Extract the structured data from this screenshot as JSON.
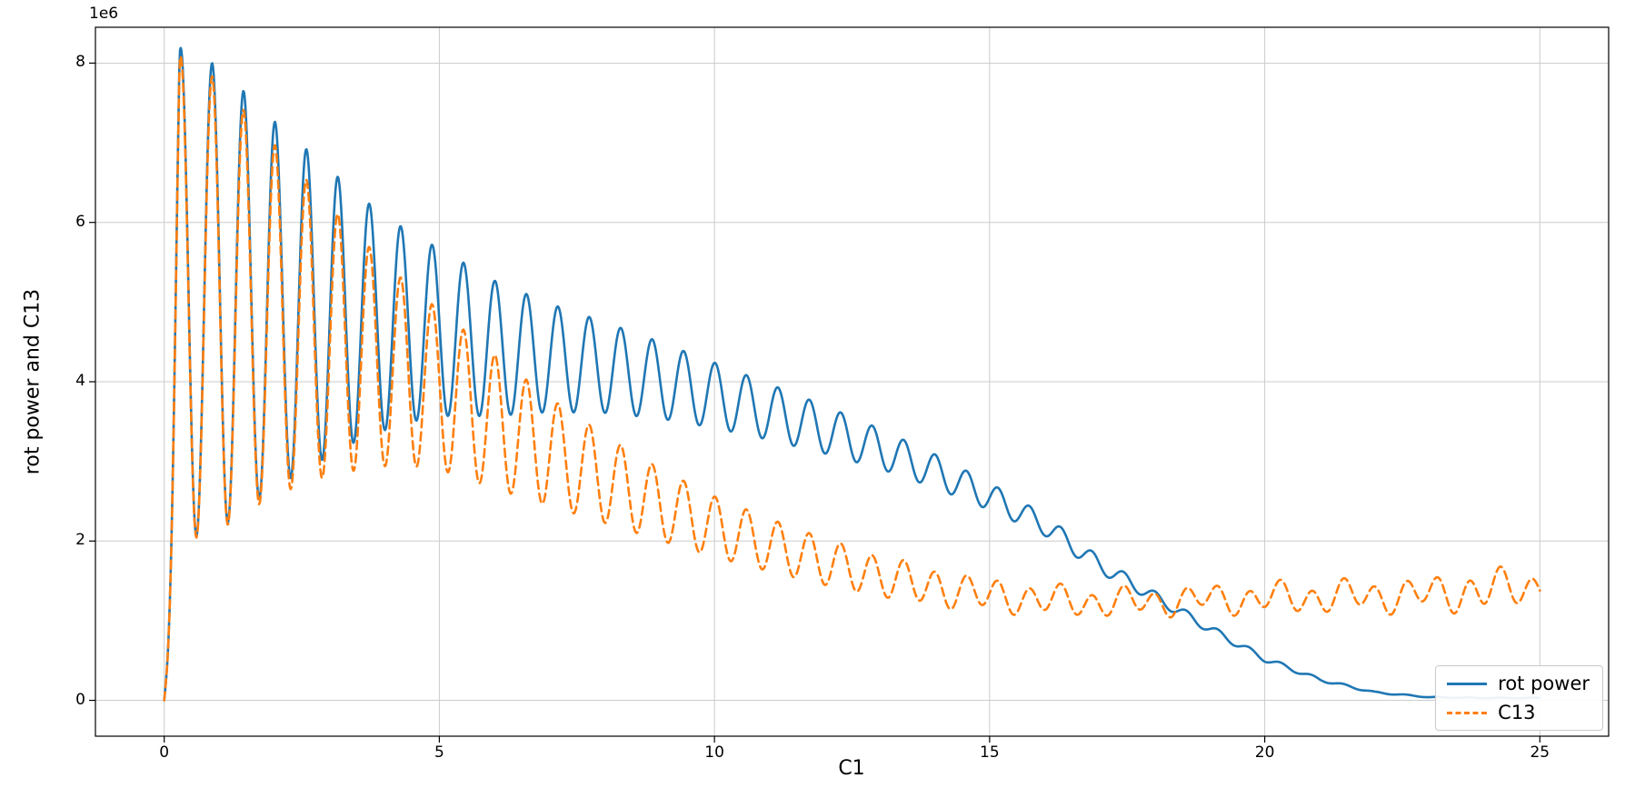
{
  "figure": {
    "background": "#ffffff",
    "offset_label": "1e6",
    "xlabel": "C1",
    "ylabel": "rot power and C13"
  },
  "chart_data": {
    "type": "line",
    "title": "",
    "xlabel": "C1",
    "ylabel": "rot power and C13",
    "y_offset_label": "1e6",
    "xlim": [
      -1.25,
      26.25
    ],
    "ylim_scaled": [
      -0.45,
      8.45
    ],
    "value_scale": 1000000,
    "xticks": [
      0,
      5,
      10,
      15,
      20,
      25
    ],
    "xtick_labels": [
      "0",
      "5",
      "10",
      "15",
      "20",
      "25"
    ],
    "yticks_scaled": [
      0,
      2,
      4,
      6,
      8
    ],
    "ytick_labels": [
      "0",
      "2",
      "4",
      "6",
      "8"
    ],
    "grid": true,
    "grid_color": "#cccccc",
    "spine_color": "#000000",
    "legend": {
      "position": "lower right",
      "entries": [
        "rot power",
        "C13"
      ]
    },
    "series": [
      {
        "name": "rot power",
        "color": "#1f77b4",
        "line_style": "solid",
        "line_width": 2.6,
        "model": {
          "description": "y(x) = ramp(x) * [ mean(x) + amp(x)*cos(omega*(x-peak_x)) + amp2(x)*sin(omega2*x+phase2) ], values in units of 1e6",
          "x_range": [
            0,
            25
          ],
          "sample_step": 0.0125,
          "omega": 11.0,
          "peak_x": 0.3,
          "ramp_end": 0.28,
          "omega2": 0,
          "phase2": 0,
          "mean_anchors": [
            [
              0,
              5.15
            ],
            [
              1,
              5.05
            ],
            [
              2,
              4.97
            ],
            [
              3,
              4.87
            ],
            [
              4,
              4.74
            ],
            [
              5,
              4.62
            ],
            [
              6,
              4.42
            ],
            [
              7,
              4.3
            ],
            [
              8,
              4.18
            ],
            [
              9,
              4.02
            ],
            [
              10,
              3.83
            ],
            [
              11,
              3.62
            ],
            [
              12,
              3.4
            ],
            [
              13,
              3.16
            ],
            [
              14,
              2.88
            ],
            [
              15,
              2.56
            ],
            [
              16,
              2.2
            ],
            [
              17,
              1.7
            ],
            [
              18,
              1.3
            ],
            [
              19,
              0.9
            ],
            [
              20,
              0.52
            ],
            [
              21,
              0.26
            ],
            [
              22,
              0.1
            ],
            [
              23,
              0.04
            ],
            [
              24,
              0.03
            ],
            [
              25,
              0.03
            ]
          ],
          "amp_anchors": [
            [
              0,
              3.1
            ],
            [
              0.5,
              3.05
            ],
            [
              1,
              2.9
            ],
            [
              1.5,
              2.6
            ],
            [
              2,
              2.3
            ],
            [
              2.5,
              2.05
            ],
            [
              3,
              1.8
            ],
            [
              3.5,
              1.55
            ],
            [
              4,
              1.35
            ],
            [
              4.5,
              1.18
            ],
            [
              5,
              1.05
            ],
            [
              5.5,
              0.95
            ],
            [
              6,
              0.85
            ],
            [
              7,
              0.68
            ],
            [
              8,
              0.57
            ],
            [
              9,
              0.48
            ],
            [
              10,
              0.41
            ],
            [
              11,
              0.35
            ],
            [
              12,
              0.3
            ],
            [
              13,
              0.25
            ],
            [
              14,
              0.21
            ],
            [
              15,
              0.17
            ],
            [
              16,
              0.13
            ],
            [
              17,
              0.1
            ],
            [
              18,
              0.07
            ],
            [
              19,
              0.05
            ],
            [
              20,
              0.035
            ],
            [
              21,
              0.02
            ],
            [
              22,
              0.01
            ],
            [
              23,
              0.005
            ],
            [
              24,
              0.004
            ],
            [
              25,
              0.004
            ]
          ],
          "amp2_anchors": [
            [
              0,
              0
            ],
            [
              25,
              0
            ]
          ]
        }
      },
      {
        "name": "C13",
        "color": "#ff7f0e",
        "line_style": "dashed",
        "line_width": 2.6,
        "model": {
          "description": "y(x) = ramp(x) * [ mean(x) + amp(x)*cos(omega*(x-peak_x)) + amp2(x)*sin(omega2*x+phase2) ], values in units of 1e6",
          "x_range": [
            0,
            25
          ],
          "sample_step": 0.0125,
          "omega": 11.0,
          "peak_x": 0.3,
          "ramp_end": 0.28,
          "omega2": 4.7,
          "phase2": 0.8,
          "mean_anchors": [
            [
              0,
              5.1
            ],
            [
              1,
              4.95
            ],
            [
              2,
              4.78
            ],
            [
              3,
              4.52
            ],
            [
              4,
              4.22
            ],
            [
              5,
              3.9
            ],
            [
              6,
              3.5
            ],
            [
              7,
              3.12
            ],
            [
              8,
              2.78
            ],
            [
              9,
              2.46
            ],
            [
              10,
              2.18
            ],
            [
              11,
              1.95
            ],
            [
              12,
              1.74
            ],
            [
              13,
              1.56
            ],
            [
              14,
              1.42
            ],
            [
              15,
              1.32
            ],
            [
              16,
              1.26
            ],
            [
              17,
              1.23
            ],
            [
              18,
              1.24
            ],
            [
              19,
              1.27
            ],
            [
              20,
              1.28
            ],
            [
              21,
              1.3
            ],
            [
              22,
              1.31
            ],
            [
              23,
              1.33
            ],
            [
              24,
              1.38
            ],
            [
              25,
              1.44
            ]
          ],
          "amp_anchors": [
            [
              0,
              3.08
            ],
            [
              0.5,
              3.0
            ],
            [
              1,
              2.82
            ],
            [
              1.5,
              2.5
            ],
            [
              2,
              2.2
            ],
            [
              2.5,
              1.95
            ],
            [
              3,
              1.7
            ],
            [
              3.5,
              1.48
            ],
            [
              4,
              1.28
            ],
            [
              4.5,
              1.12
            ],
            [
              5,
              1.0
            ],
            [
              5.5,
              0.92
            ],
            [
              6,
              0.84
            ],
            [
              7,
              0.68
            ],
            [
              8,
              0.55
            ],
            [
              9,
              0.45
            ],
            [
              10,
              0.38
            ],
            [
              11,
              0.33
            ],
            [
              12,
              0.29
            ],
            [
              13,
              0.25
            ],
            [
              14,
              0.22
            ],
            [
              15,
              0.18
            ],
            [
              16,
              0.16
            ],
            [
              17,
              0.15
            ],
            [
              18,
              0.14
            ],
            [
              19,
              0.14
            ],
            [
              20,
              0.15
            ],
            [
              21,
              0.16
            ],
            [
              22,
              0.16
            ],
            [
              23,
              0.17
            ],
            [
              24,
              0.21
            ],
            [
              25,
              0.17
            ]
          ],
          "amp2_anchors": [
            [
              0,
              0
            ],
            [
              12,
              0
            ],
            [
              14,
              0.04
            ],
            [
              16,
              0.06
            ],
            [
              18,
              0.07
            ],
            [
              20,
              0.08
            ],
            [
              22,
              0.08
            ],
            [
              24,
              0.09
            ],
            [
              25,
              0.08
            ]
          ]
        }
      }
    ]
  }
}
